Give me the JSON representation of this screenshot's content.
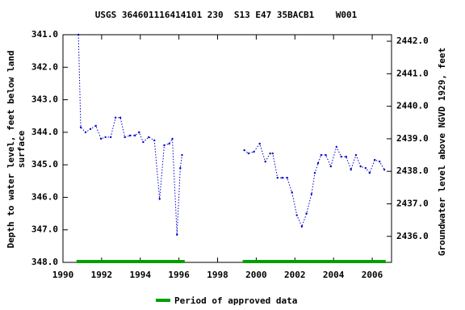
{
  "chart_data": {
    "type": "line",
    "title": "USGS 364601116414101 230  S13 E47 35BACB1    W001",
    "ylabel": [
      "Depth to water level, feet below land",
      "surface"
    ],
    "y2label": "Groundwater level above NGVD 1929, feet",
    "invert_y": true,
    "xlim": [
      1990,
      2007
    ],
    "xticks": [
      1990,
      1992,
      1994,
      1996,
      1998,
      2000,
      2002,
      2004,
      2006
    ],
    "ylim": [
      341,
      348
    ],
    "yticks": [
      {
        "value": 341,
        "label": "341.0"
      },
      {
        "value": 342,
        "label": "342.0"
      },
      {
        "value": 343,
        "label": "343.0"
      },
      {
        "value": 344,
        "label": "344.0"
      },
      {
        "value": 345,
        "label": "345.0"
      },
      {
        "value": 346,
        "label": "346.0"
      },
      {
        "value": 347,
        "label": "347.0"
      },
      {
        "value": 348,
        "label": "348.0"
      }
    ],
    "y2lim": [
      2435.2,
      2442.2
    ],
    "y2ticks": [
      {
        "value": 2436,
        "label": "2436.0"
      },
      {
        "value": 2437,
        "label": "2437.0"
      },
      {
        "value": 2438,
        "label": "2438.0"
      },
      {
        "value": 2439,
        "label": "2439.0"
      },
      {
        "value": 2440,
        "label": "2440.0"
      },
      {
        "value": 2441,
        "label": "2441.0"
      },
      {
        "value": 2442,
        "label": "2442.0"
      }
    ],
    "series": [
      {
        "name": "Depth to water level",
        "color": "#0000cc",
        "x": [
          1990.8,
          1990.92,
          1991.17,
          1991.42,
          1991.7,
          1991.97,
          1992.2,
          1992.47,
          1992.72,
          1992.97,
          1993.2,
          1993.47,
          1993.72,
          1993.94,
          1994.15,
          1994.44,
          1994.73,
          1995.0,
          1995.24,
          1995.5,
          1995.66,
          1995.9,
          1996.07,
          1996.16,
          null,
          1999.38,
          1999.6,
          1999.88,
          2000.18,
          2000.47,
          2000.72,
          2000.85,
          2001.1,
          2001.35,
          2001.6,
          2001.85,
          2002.1,
          2002.36,
          2002.6,
          2002.86,
          2003.03,
          2003.2,
          2003.36,
          2003.6,
          2003.86,
          2004.15,
          2004.4,
          2004.65,
          2004.9,
          2005.16,
          2005.4,
          2005.66,
          2005.87,
          2006.13,
          2006.38,
          2006.63
        ],
        "values": [
          341.0,
          343.85,
          344.0,
          343.9,
          343.8,
          344.2,
          344.15,
          344.15,
          343.55,
          343.55,
          344.15,
          344.1,
          344.1,
          344.0,
          344.3,
          344.15,
          344.25,
          346.05,
          344.4,
          344.35,
          344.2,
          347.15,
          345.1,
          344.7,
          null,
          344.55,
          344.65,
          344.6,
          344.35,
          344.9,
          344.65,
          344.65,
          345.4,
          345.4,
          345.4,
          345.85,
          346.55,
          346.9,
          346.5,
          345.9,
          345.25,
          344.95,
          344.7,
          344.7,
          345.05,
          344.45,
          344.75,
          344.75,
          345.15,
          344.7,
          345.05,
          345.1,
          345.25,
          344.85,
          344.9,
          345.15
        ]
      }
    ],
    "approved": {
      "name": "Period of approved data",
      "color": "#00a000",
      "periods": [
        [
          1990.7,
          1996.3
        ],
        [
          1999.3,
          2006.7
        ]
      ]
    }
  }
}
